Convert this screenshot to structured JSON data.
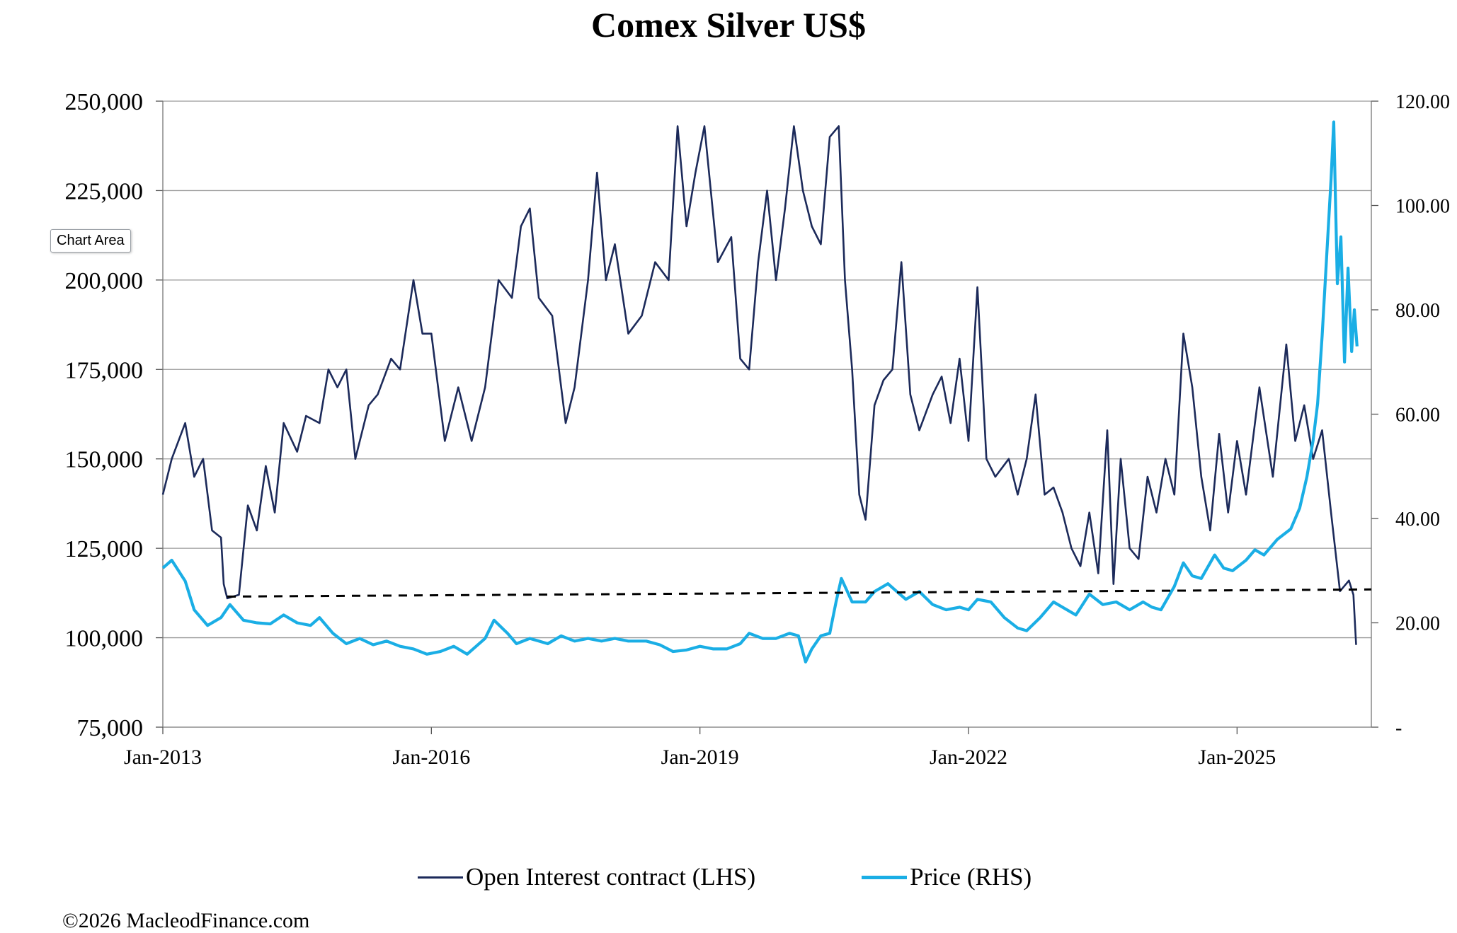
{
  "tooltip": "Chart Area",
  "copyright": "©2026 MacleodFinance.com",
  "chart_data": {
    "type": "line",
    "title": "Comex Silver US$",
    "x_ticks": [
      "Jan-2013",
      "Jan-2016",
      "Jan-2019",
      "Jan-2022",
      "Jan-2025"
    ],
    "x_range": [
      2013.0,
      2026.5
    ],
    "y_left": {
      "range": [
        75000,
        250000
      ],
      "ticks": [
        "75,000",
        "100,000",
        "125,000",
        "150,000",
        "175,000",
        "200,000",
        "225,000",
        "250,000"
      ]
    },
    "y_right": {
      "range": [
        0,
        120
      ],
      "ticks": [
        "-",
        "20.00",
        "40.00",
        "60.00",
        "80.00",
        "100.00",
        "120.00"
      ]
    },
    "grid": true,
    "legend_position": "bottom",
    "colors": {
      "open_interest": "#1c2a5a",
      "price": "#1aaee5",
      "trend": "#000000",
      "grid": "#9a9a9a"
    },
    "series": [
      {
        "name": "Open Interest contract (LHS)",
        "axis": "left",
        "points": [
          [
            2013.0,
            140000
          ],
          [
            2013.1,
            150000
          ],
          [
            2013.25,
            160000
          ],
          [
            2013.35,
            145000
          ],
          [
            2013.45,
            150000
          ],
          [
            2013.55,
            130000
          ],
          [
            2013.65,
            128000
          ],
          [
            2013.68,
            115000
          ],
          [
            2013.72,
            111000
          ],
          [
            2013.85,
            112000
          ],
          [
            2013.95,
            137000
          ],
          [
            2014.05,
            130000
          ],
          [
            2014.15,
            148000
          ],
          [
            2014.25,
            135000
          ],
          [
            2014.35,
            160000
          ],
          [
            2014.5,
            152000
          ],
          [
            2014.6,
            162000
          ],
          [
            2014.75,
            160000
          ],
          [
            2014.85,
            175000
          ],
          [
            2014.95,
            170000
          ],
          [
            2015.05,
            175000
          ],
          [
            2015.15,
            150000
          ],
          [
            2015.3,
            165000
          ],
          [
            2015.4,
            168000
          ],
          [
            2015.55,
            178000
          ],
          [
            2015.65,
            175000
          ],
          [
            2015.8,
            200000
          ],
          [
            2015.9,
            185000
          ],
          [
            2016.0,
            185000
          ],
          [
            2016.15,
            155000
          ],
          [
            2016.3,
            170000
          ],
          [
            2016.45,
            155000
          ],
          [
            2016.6,
            170000
          ],
          [
            2016.75,
            200000
          ],
          [
            2016.9,
            195000
          ],
          [
            2017.0,
            215000
          ],
          [
            2017.1,
            220000
          ],
          [
            2017.2,
            195000
          ],
          [
            2017.35,
            190000
          ],
          [
            2017.5,
            160000
          ],
          [
            2017.6,
            170000
          ],
          [
            2017.75,
            200000
          ],
          [
            2017.85,
            230000
          ],
          [
            2017.95,
            200000
          ],
          [
            2018.05,
            210000
          ],
          [
            2018.2,
            185000
          ],
          [
            2018.35,
            190000
          ],
          [
            2018.5,
            205000
          ],
          [
            2018.65,
            200000
          ],
          [
            2018.75,
            243000
          ],
          [
            2018.85,
            215000
          ],
          [
            2018.95,
            230000
          ],
          [
            2019.05,
            243000
          ],
          [
            2019.2,
            205000
          ],
          [
            2019.35,
            212000
          ],
          [
            2019.45,
            178000
          ],
          [
            2019.55,
            175000
          ],
          [
            2019.65,
            205000
          ],
          [
            2019.75,
            225000
          ],
          [
            2019.85,
            200000
          ],
          [
            2019.95,
            220000
          ],
          [
            2020.05,
            243000
          ],
          [
            2020.15,
            225000
          ],
          [
            2020.25,
            215000
          ],
          [
            2020.35,
            210000
          ],
          [
            2020.45,
            240000
          ],
          [
            2020.55,
            243000
          ],
          [
            2020.62,
            200000
          ],
          [
            2020.7,
            175000
          ],
          [
            2020.78,
            140000
          ],
          [
            2020.85,
            133000
          ],
          [
            2020.95,
            165000
          ],
          [
            2021.05,
            172000
          ],
          [
            2021.15,
            175000
          ],
          [
            2021.25,
            205000
          ],
          [
            2021.35,
            168000
          ],
          [
            2021.45,
            158000
          ],
          [
            2021.6,
            168000
          ],
          [
            2021.7,
            173000
          ],
          [
            2021.8,
            160000
          ],
          [
            2021.9,
            178000
          ],
          [
            2022.0,
            155000
          ],
          [
            2022.1,
            198000
          ],
          [
            2022.2,
            150000
          ],
          [
            2022.3,
            145000
          ],
          [
            2022.45,
            150000
          ],
          [
            2022.55,
            140000
          ],
          [
            2022.65,
            150000
          ],
          [
            2022.75,
            168000
          ],
          [
            2022.85,
            140000
          ],
          [
            2022.95,
            142000
          ],
          [
            2023.05,
            135000
          ],
          [
            2023.15,
            125000
          ],
          [
            2023.25,
            120000
          ],
          [
            2023.35,
            135000
          ],
          [
            2023.45,
            118000
          ],
          [
            2023.55,
            158000
          ],
          [
            2023.62,
            115000
          ],
          [
            2023.7,
            150000
          ],
          [
            2023.8,
            125000
          ],
          [
            2023.9,
            122000
          ],
          [
            2024.0,
            145000
          ],
          [
            2024.1,
            135000
          ],
          [
            2024.2,
            150000
          ],
          [
            2024.3,
            140000
          ],
          [
            2024.4,
            185000
          ],
          [
            2024.5,
            170000
          ],
          [
            2024.6,
            145000
          ],
          [
            2024.7,
            130000
          ],
          [
            2024.8,
            157000
          ],
          [
            2024.9,
            135000
          ],
          [
            2025.0,
            155000
          ],
          [
            2025.1,
            140000
          ],
          [
            2025.25,
            170000
          ],
          [
            2025.4,
            145000
          ],
          [
            2025.55,
            182000
          ],
          [
            2025.65,
            155000
          ],
          [
            2025.75,
            165000
          ],
          [
            2025.85,
            150000
          ],
          [
            2025.95,
            158000
          ],
          [
            2026.05,
            135000
          ],
          [
            2026.15,
            113000
          ],
          [
            2026.25,
            116000
          ],
          [
            2026.3,
            112000
          ],
          [
            2026.33,
            98000
          ]
        ]
      },
      {
        "name": "Price (RHS)",
        "axis": "right",
        "points": [
          [
            2013.0,
            30.5
          ],
          [
            2013.1,
            32.0
          ],
          [
            2013.25,
            28.0
          ],
          [
            2013.35,
            22.5
          ],
          [
            2013.5,
            19.5
          ],
          [
            2013.65,
            21.0
          ],
          [
            2013.75,
            23.5
          ],
          [
            2013.9,
            20.5
          ],
          [
            2014.05,
            20.0
          ],
          [
            2014.2,
            19.8
          ],
          [
            2014.35,
            21.5
          ],
          [
            2014.5,
            20.0
          ],
          [
            2014.65,
            19.5
          ],
          [
            2014.75,
            21.0
          ],
          [
            2014.9,
            18.0
          ],
          [
            2015.05,
            16.0
          ],
          [
            2015.2,
            17.0
          ],
          [
            2015.35,
            15.8
          ],
          [
            2015.5,
            16.5
          ],
          [
            2015.65,
            15.5
          ],
          [
            2015.8,
            15.0
          ],
          [
            2015.95,
            14.0
          ],
          [
            2016.1,
            14.5
          ],
          [
            2016.25,
            15.5
          ],
          [
            2016.4,
            14.0
          ],
          [
            2016.6,
            17.0
          ],
          [
            2016.7,
            20.5
          ],
          [
            2016.85,
            18.0
          ],
          [
            2016.95,
            16.0
          ],
          [
            2017.1,
            17.0
          ],
          [
            2017.3,
            16.0
          ],
          [
            2017.45,
            17.5
          ],
          [
            2017.6,
            16.5
          ],
          [
            2017.75,
            17.0
          ],
          [
            2017.9,
            16.5
          ],
          [
            2018.05,
            17.0
          ],
          [
            2018.2,
            16.5
          ],
          [
            2018.4,
            16.5
          ],
          [
            2018.55,
            15.8
          ],
          [
            2018.7,
            14.5
          ],
          [
            2018.85,
            14.8
          ],
          [
            2019.0,
            15.5
          ],
          [
            2019.15,
            15.0
          ],
          [
            2019.3,
            15.0
          ],
          [
            2019.45,
            16.0
          ],
          [
            2019.55,
            18.0
          ],
          [
            2019.7,
            17.0
          ],
          [
            2019.85,
            17.0
          ],
          [
            2020.0,
            18.0
          ],
          [
            2020.1,
            17.5
          ],
          [
            2020.18,
            12.5
          ],
          [
            2020.25,
            15.0
          ],
          [
            2020.35,
            17.5
          ],
          [
            2020.45,
            18.0
          ],
          [
            2020.52,
            24.0
          ],
          [
            2020.58,
            28.5
          ],
          [
            2020.7,
            24.0
          ],
          [
            2020.85,
            24.0
          ],
          [
            2020.95,
            26.0
          ],
          [
            2021.1,
            27.5
          ],
          [
            2021.2,
            26.0
          ],
          [
            2021.3,
            24.5
          ],
          [
            2021.45,
            26.0
          ],
          [
            2021.6,
            23.5
          ],
          [
            2021.75,
            22.5
          ],
          [
            2021.9,
            23.0
          ],
          [
            2022.0,
            22.5
          ],
          [
            2022.1,
            24.5
          ],
          [
            2022.25,
            24.0
          ],
          [
            2022.4,
            21.0
          ],
          [
            2022.55,
            19.0
          ],
          [
            2022.65,
            18.5
          ],
          [
            2022.8,
            21.0
          ],
          [
            2022.95,
            24.0
          ],
          [
            2023.05,
            23.0
          ],
          [
            2023.2,
            21.5
          ],
          [
            2023.35,
            25.5
          ],
          [
            2023.5,
            23.5
          ],
          [
            2023.65,
            24.0
          ],
          [
            2023.8,
            22.5
          ],
          [
            2023.95,
            24.0
          ],
          [
            2024.05,
            23.0
          ],
          [
            2024.15,
            22.5
          ],
          [
            2024.3,
            27.0
          ],
          [
            2024.4,
            31.5
          ],
          [
            2024.5,
            29.0
          ],
          [
            2024.6,
            28.5
          ],
          [
            2024.75,
            33.0
          ],
          [
            2024.85,
            30.5
          ],
          [
            2024.95,
            30.0
          ],
          [
            2025.1,
            32.0
          ],
          [
            2025.2,
            34.0
          ],
          [
            2025.3,
            33.0
          ],
          [
            2025.45,
            36.0
          ],
          [
            2025.6,
            38.0
          ],
          [
            2025.7,
            42.0
          ],
          [
            2025.78,
            48.0
          ],
          [
            2025.85,
            55.0
          ],
          [
            2025.9,
            62.0
          ],
          [
            2025.95,
            75.0
          ],
          [
            2026.0,
            90.0
          ],
          [
            2026.05,
            105.0
          ],
          [
            2026.08,
            116.0
          ],
          [
            2026.12,
            85.0
          ],
          [
            2026.16,
            94.0
          ],
          [
            2026.2,
            70.0
          ],
          [
            2026.24,
            88.0
          ],
          [
            2026.28,
            72.0
          ],
          [
            2026.31,
            80.0
          ],
          [
            2026.34,
            73.0
          ]
        ]
      },
      {
        "name": "",
        "axis": "left",
        "style": "dashed",
        "points": [
          [
            2013.72,
            111500
          ],
          [
            2026.5,
            113500
          ]
        ]
      }
    ]
  }
}
